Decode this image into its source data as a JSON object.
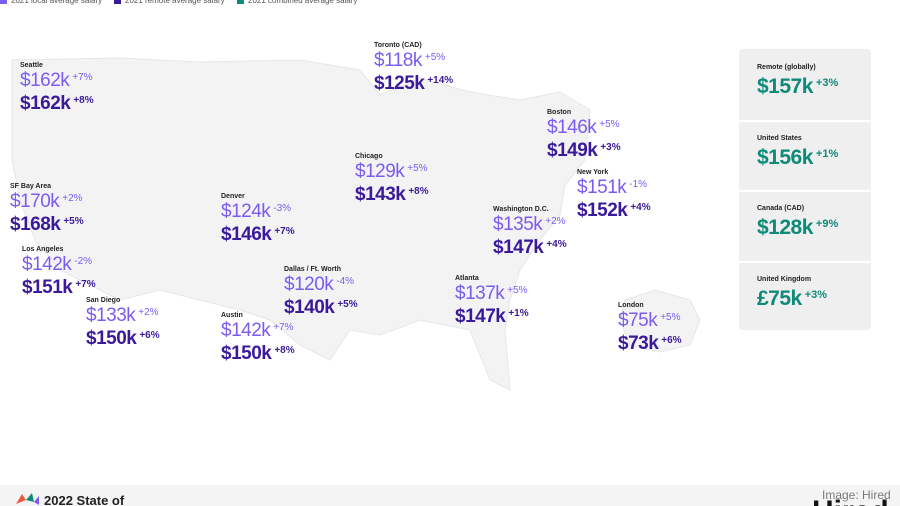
{
  "legend": [
    "2021 local average salary",
    "2021 remote average salary",
    "2021 combined average salary"
  ],
  "cities": [
    {
      "name": "Seattle",
      "local": "$162k",
      "local_change": "+7%",
      "remote": "$162k",
      "remote_change": "+8%"
    },
    {
      "name": "Toronto (CAD)",
      "local": "$118k",
      "local_change": "+5%",
      "remote": "$125k",
      "remote_change": "+14%"
    },
    {
      "name": "Boston",
      "local": "$146k",
      "local_change": "+5%",
      "remote": "$149k",
      "remote_change": "+3%"
    },
    {
      "name": "Chicago",
      "local": "$129k",
      "local_change": "+5%",
      "remote": "$143k",
      "remote_change": "+8%"
    },
    {
      "name": "New York",
      "local": "$151k",
      "local_change": "-1%",
      "remote": "$152k",
      "remote_change": "+4%"
    },
    {
      "name": "SF Bay Area",
      "local": "$170k",
      "local_change": "+2%",
      "remote": "$168k",
      "remote_change": "+5%"
    },
    {
      "name": "Denver",
      "local": "$124k",
      "local_change": "-3%",
      "remote": "$146k",
      "remote_change": "+7%"
    },
    {
      "name": "Washington D.C.",
      "local": "$135k",
      "local_change": "+2%",
      "remote": "$147k",
      "remote_change": "+4%"
    },
    {
      "name": "Los Angeles",
      "local": "$142k",
      "local_change": "-2%",
      "remote": "$151k",
      "remote_change": "+7%"
    },
    {
      "name": "Dallas / Ft. Worth",
      "local": "$120k",
      "local_change": "-4%",
      "remote": "$140k",
      "remote_change": "+5%"
    },
    {
      "name": "Atlanta",
      "local": "$137k",
      "local_change": "+5%",
      "remote": "$147k",
      "remote_change": "+1%"
    },
    {
      "name": "San Diego",
      "local": "$133k",
      "local_change": "+2%",
      "remote": "$150k",
      "remote_change": "+6%"
    },
    {
      "name": "Austin",
      "local": "$142k",
      "local_change": "+7%",
      "remote": "$150k",
      "remote_change": "+8%"
    },
    {
      "name": "London",
      "local": "$75k",
      "local_change": "+5%",
      "remote": "$73k",
      "remote_change": "+6%"
    }
  ],
  "combined": [
    {
      "name": "Remote (globally)",
      "value": "$157k",
      "change": "+3%"
    },
    {
      "name": "United States",
      "value": "$156k",
      "change": "+1%"
    },
    {
      "name": "Canada (CAD)",
      "value": "$128k",
      "change": "+9%"
    },
    {
      "name": "United Kingdom",
      "value": "£75k",
      "change": "+3%"
    }
  ],
  "footer": {
    "report": "2022 State of",
    "credit": "Image: Hired",
    "logo": "Hired"
  }
}
